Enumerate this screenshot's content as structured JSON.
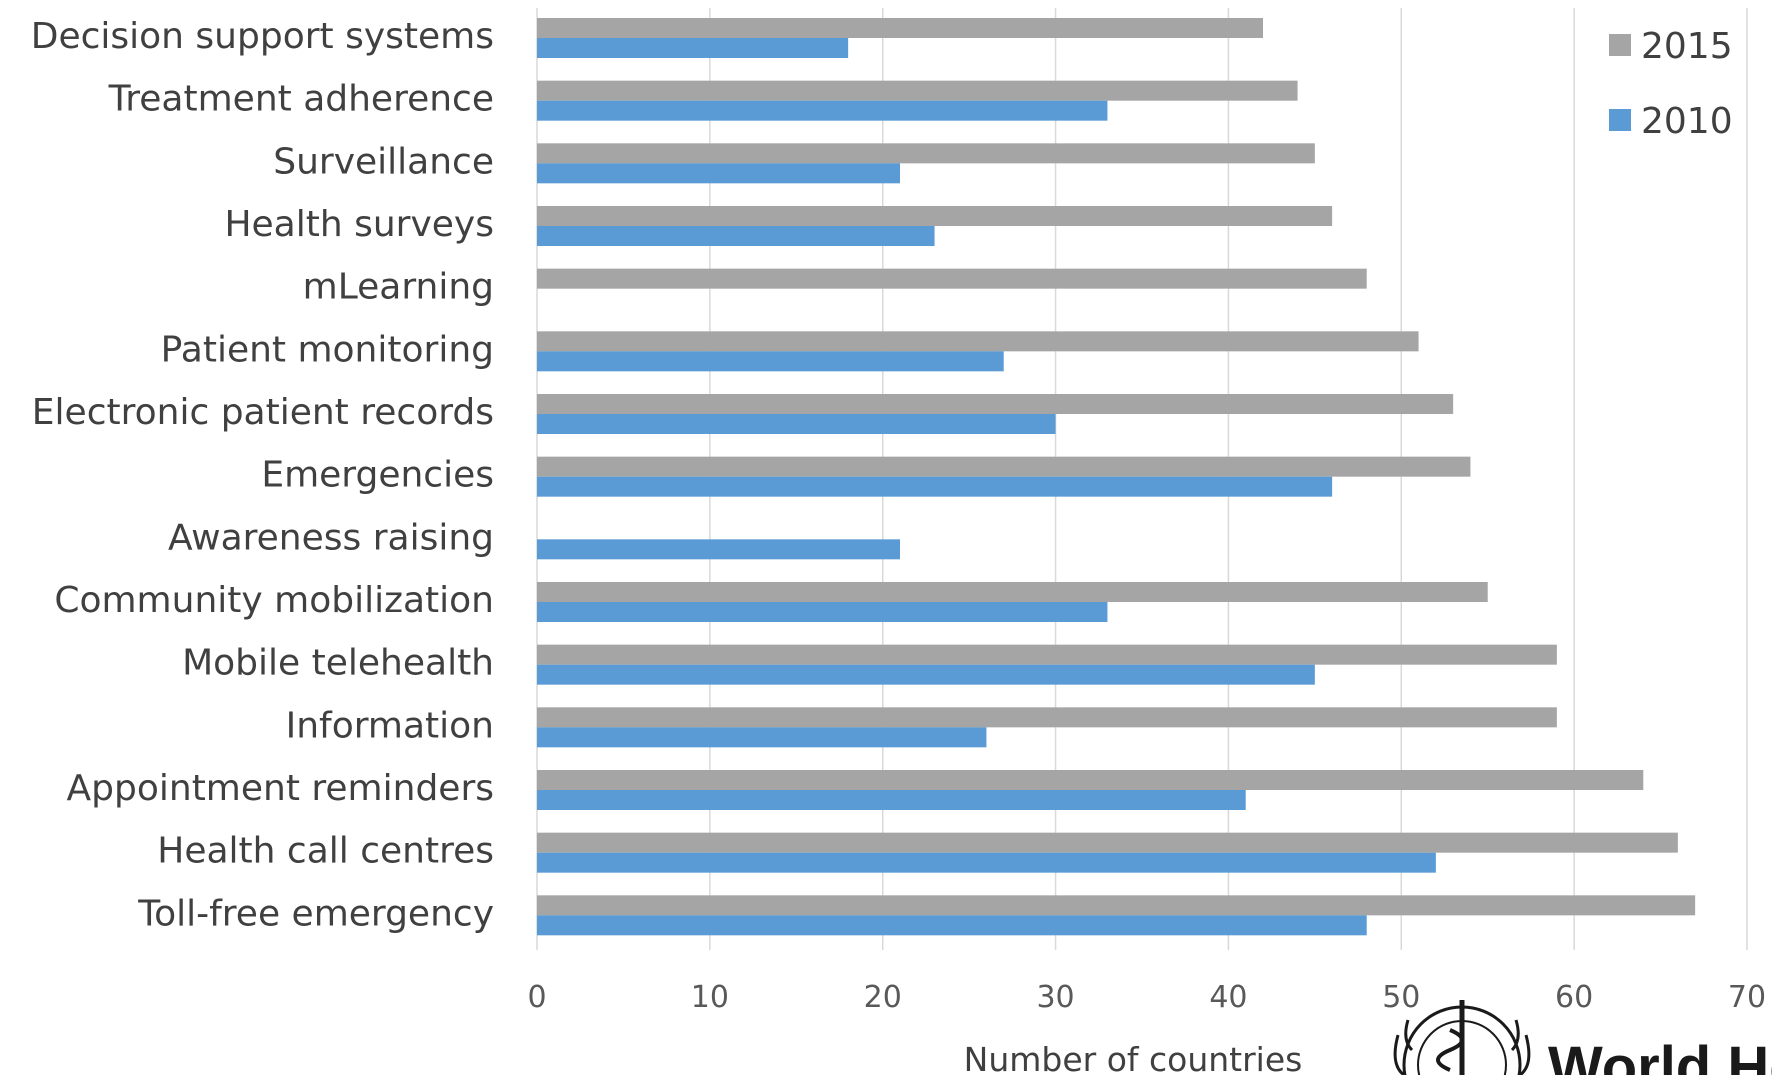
{
  "chart_data": {
    "type": "bar",
    "orientation": "horizontal",
    "categories": [
      "Decision support systems",
      "Treatment adherence",
      "Surveillance",
      "Health surveys",
      "mLearning",
      "Patient monitoring",
      "Electronic patient records",
      "Emergencies",
      "Awareness raising",
      "Community mobilization",
      "Mobile telehealth",
      "Information",
      "Appointment reminders",
      "Health call centres",
      "Toll-free emergency"
    ],
    "series": [
      {
        "name": "2015",
        "color": "#a5a5a5",
        "values": [
          42,
          44,
          45,
          46,
          48,
          51,
          53,
          54,
          null,
          55,
          59,
          59,
          64,
          66,
          67
        ]
      },
      {
        "name": "2010",
        "color": "#5b9bd5",
        "values": [
          18,
          33,
          21,
          23,
          null,
          27,
          30,
          46,
          21,
          33,
          45,
          26,
          41,
          52,
          48
        ]
      }
    ],
    "xlabel": "Number of countries",
    "xlim": [
      0,
      70
    ],
    "xticks": [
      0,
      10,
      20,
      30,
      40,
      50,
      60,
      70
    ],
    "grid": true,
    "legend": "top-right"
  },
  "logo": {
    "text": "World Hea",
    "icon": "who-emblem-icon"
  }
}
